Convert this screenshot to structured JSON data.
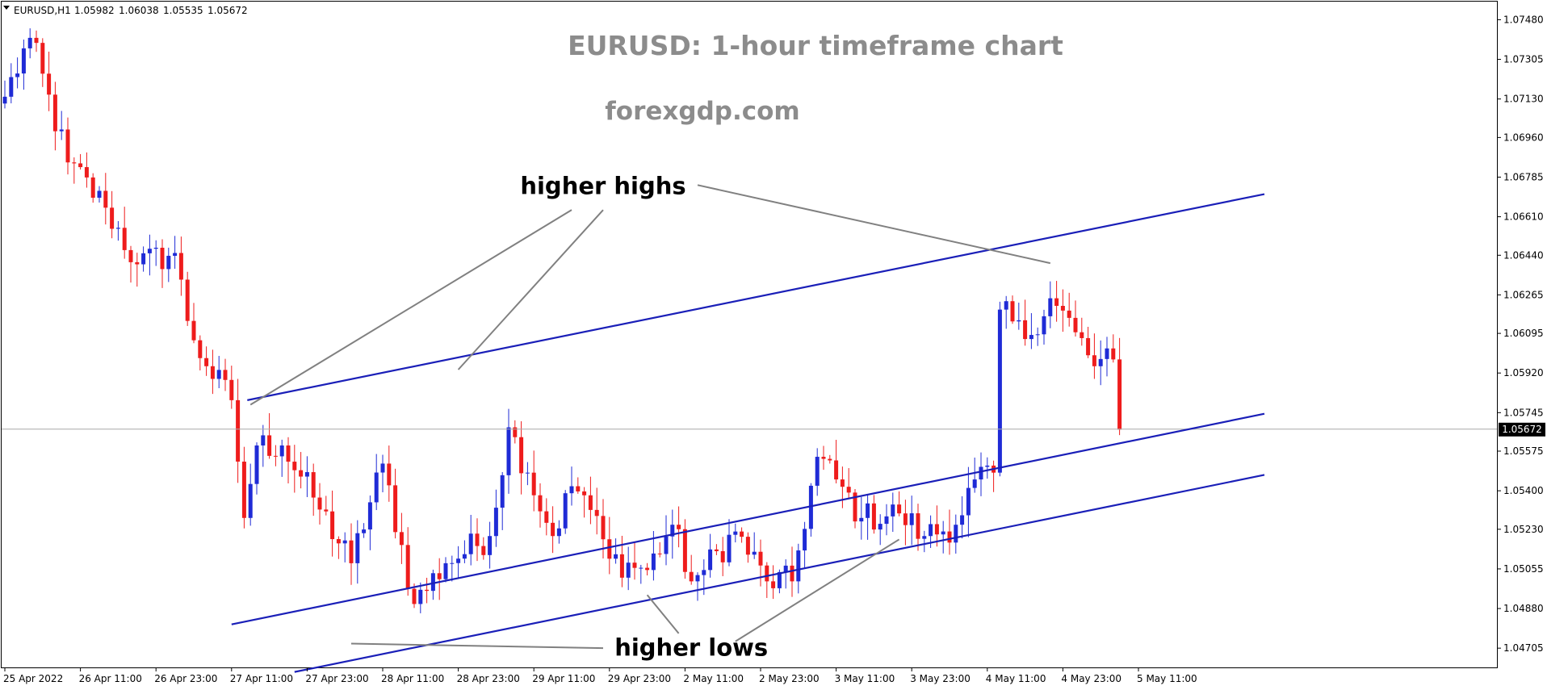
{
  "chart_data": {
    "type": "candlestick",
    "symbol_header": "EURUSD,H1",
    "ohlc_header": [
      "1.05982",
      "1.06038",
      "1.05535",
      "1.05672"
    ],
    "title": "EURUSD: 1-hour timeframe chart",
    "subtitle": "forexgdp.com",
    "current_price_label": "1.05672",
    "current_price": 1.05672,
    "ylim": [
      1.0462,
      1.0756
    ],
    "y_ticks": [
      "1.07480",
      "1.07305",
      "1.07130",
      "1.06960",
      "1.06785",
      "1.06610",
      "1.06440",
      "1.06265",
      "1.06095",
      "1.05920",
      "1.05745",
      "1.05575",
      "1.05400",
      "1.05230",
      "1.05055",
      "1.04880",
      "1.04705"
    ],
    "x_ticks": [
      "25 Apr 2022",
      "26 Apr 11:00",
      "26 Apr 23:00",
      "27 Apr 11:00",
      "27 Apr 23:00",
      "28 Apr 11:00",
      "28 Apr 23:00",
      "29 Apr 11:00",
      "29 Apr 23:00",
      "2 May 11:00",
      "2 May 23:00",
      "3 May 11:00",
      "3 May 23:00",
      "4 May 11:00",
      "4 May 23:00",
      "5 May 11:00"
    ],
    "grid": false,
    "colors": {
      "bull": "#1f2bd6",
      "bear": "#ee1c1c",
      "trendline": "#1a1fb8",
      "annotation_arrow": "#808080",
      "price_line": "#a8a8a8"
    },
    "anchors": [
      {
        "bar": 0,
        "price": 1.0714
      },
      {
        "bar": 4,
        "price": 1.074
      },
      {
        "bar": 10,
        "price": 1.0685
      },
      {
        "bar": 16,
        "price": 1.0665
      },
      {
        "bar": 21,
        "price": 1.064
      },
      {
        "bar": 27,
        "price": 1.0645
      },
      {
        "bar": 29,
        "price": 1.0615
      },
      {
        "bar": 32,
        "price": 1.0595
      },
      {
        "bar": 36,
        "price": 1.058
      },
      {
        "bar": 38,
        "price": 1.0528
      },
      {
        "bar": 40,
        "price": 1.056
      },
      {
        "bar": 44,
        "price": 1.056
      },
      {
        "bar": 49,
        "price": 1.0537
      },
      {
        "bar": 55,
        "price": 1.0508
      },
      {
        "bar": 60,
        "price": 1.0552
      },
      {
        "bar": 65,
        "price": 1.049
      },
      {
        "bar": 70,
        "price": 1.0508
      },
      {
        "bar": 77,
        "price": 1.052
      },
      {
        "bar": 80,
        "price": 1.0568
      },
      {
        "bar": 83,
        "price": 1.0548
      },
      {
        "bar": 87,
        "price": 1.052
      },
      {
        "bar": 90,
        "price": 1.0542
      },
      {
        "bar": 92,
        "price": 1.0538
      },
      {
        "bar": 96,
        "price": 1.051
      },
      {
        "bar": 102,
        "price": 1.0505
      },
      {
        "bar": 106,
        "price": 1.0525
      },
      {
        "bar": 109,
        "price": 1.05
      },
      {
        "bar": 111,
        "price": 1.0505
      },
      {
        "bar": 116,
        "price": 1.0522
      },
      {
        "bar": 121,
        "price": 1.05
      },
      {
        "bar": 125,
        "price": 1.05
      },
      {
        "bar": 129,
        "price": 1.0555
      },
      {
        "bar": 132,
        "price": 1.0545
      },
      {
        "bar": 136,
        "price": 1.0528
      },
      {
        "bar": 142,
        "price": 1.053
      },
      {
        "bar": 146,
        "price": 1.052
      },
      {
        "bar": 151,
        "price": 1.0525
      },
      {
        "bar": 154,
        "price": 1.0545
      },
      {
        "bar": 157,
        "price": 1.0548
      },
      {
        "bar": 158,
        "price": 1.062
      },
      {
        "bar": 162,
        "price": 1.0607
      },
      {
        "bar": 166,
        "price": 1.0625
      },
      {
        "bar": 170,
        "price": 1.061
      },
      {
        "bar": 173,
        "price": 1.0595
      },
      {
        "bar": 176,
        "price": 1.0598
      },
      {
        "bar": 177,
        "price": 1.0567
      }
    ],
    "trendlines": [
      {
        "name": "upper-channel-line",
        "from": {
          "bar": 38.5,
          "price": 1.058
        },
        "to": {
          "bar": 200,
          "price": 1.0671
        }
      },
      {
        "name": "middle-channel-line",
        "from": {
          "bar": 36,
          "price": 1.0481
        },
        "to": {
          "bar": 200,
          "price": 1.0574
        }
      },
      {
        "name": "lower-channel-line",
        "from": {
          "bar": 46,
          "price": 1.046
        },
        "to": {
          "bar": 200,
          "price": 1.0547
        }
      }
    ],
    "annotations": [
      {
        "text": "higher highs",
        "anchor_bar": 95,
        "anchor_price": 1.0675,
        "arrows": [
          {
            "text_side": {
              "bar": 90,
              "price": 1.0664
            },
            "target": {
              "bar": 39,
              "price": 1.0578
            }
          },
          {
            "text_side": {
              "bar": 95,
              "price": 1.0664
            },
            "target": {
              "bar": 72,
              "price": 1.05935
            }
          },
          {
            "text_side": {
              "bar": 110,
              "price": 1.0675
            },
            "target": {
              "bar": 166,
              "price": 1.06405
            }
          }
        ]
      },
      {
        "text": "higher lows",
        "anchor_bar": 109,
        "anchor_price": 1.0471,
        "arrows": [
          {
            "text_side": {
              "bar": 95,
              "price": 1.04705
            },
            "target": {
              "bar": 55,
              "price": 1.04725
            }
          },
          {
            "text_side": {
              "bar": 107,
              "price": 1.0477
            },
            "target": {
              "bar": 102,
              "price": 1.0494
            }
          },
          {
            "text_side": {
              "bar": 116,
              "price": 1.04735
            },
            "target": {
              "bar": 142,
              "price": 1.05185
            }
          }
        ]
      }
    ]
  }
}
